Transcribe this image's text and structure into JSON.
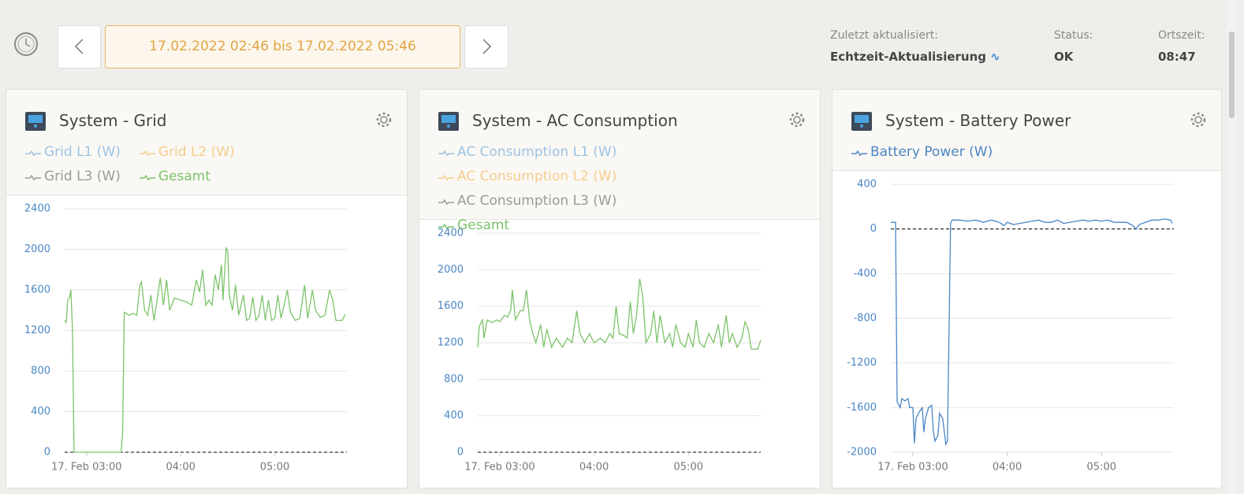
{
  "header": {
    "date_range": "17.02.2022 02:46 bis 17.02.2022 05:46",
    "updated_label": "Zuletzt aktualisiert:",
    "updated_value": "Echtzeit-Aktualisierung",
    "status_label": "Status:",
    "status_value": "OK",
    "time_label": "Ortszeit:",
    "time_value": "08:47"
  },
  "chart_data": [
    {
      "type": "line",
      "title": "System - Grid",
      "series": [
        {
          "name": "Grid L1 (W)",
          "color": "#9cc3e4"
        },
        {
          "name": "Grid L2 (W)",
          "color": "#f5cd8f"
        },
        {
          "name": "Grid L3 (W)",
          "color": "#9a9a9a"
        },
        {
          "name": "Gesamt",
          "color": "#7cc36a",
          "x": [
            "02:46",
            "02:47",
            "02:48",
            "02:49",
            "02:50",
            "02:51",
            "02:52",
            "03:22",
            "03:23",
            "03:24",
            "03:27",
            "03:30",
            "03:32",
            "03:34",
            "03:35",
            "03:37",
            "03:39",
            "03:41",
            "03:43",
            "03:45",
            "03:47",
            "03:49",
            "03:51",
            "03:53",
            "03:56",
            "04:00",
            "04:04",
            "04:07",
            "04:10",
            "04:12",
            "04:14",
            "04:16",
            "04:18",
            "04:20",
            "04:22",
            "04:24",
            "04:26",
            "04:27",
            "04:29",
            "04:30",
            "04:31",
            "04:33",
            "04:35",
            "04:37",
            "04:40",
            "04:42",
            "04:44",
            "04:46",
            "04:48",
            "04:50",
            "04:52",
            "04:54",
            "04:56",
            "04:58",
            "05:00",
            "05:02",
            "05:04",
            "05:06",
            "05:08",
            "05:10",
            "05:13",
            "05:16",
            "05:19",
            "05:21",
            "05:24",
            "05:26",
            "05:29",
            "05:32",
            "05:35",
            "05:37",
            "05:39",
            "05:43",
            "05:45"
          ],
          "values": [
            1300,
            1280,
            1500,
            1520,
            1600,
            1200,
            0,
            0,
            200,
            1380,
            1350,
            1370,
            1350,
            1650,
            1680,
            1400,
            1350,
            1550,
            1300,
            1500,
            1720,
            1450,
            1700,
            1400,
            1520,
            1500,
            1480,
            1450,
            1700,
            1580,
            1800,
            1450,
            1500,
            1450,
            1750,
            1600,
            1850,
            1500,
            2020,
            1980,
            1550,
            1400,
            1650,
            1350,
            1550,
            1300,
            1320,
            1530,
            1300,
            1350,
            1550,
            1300,
            1500,
            1300,
            1320,
            1550,
            1320,
            1450,
            1600,
            1380,
            1300,
            1320,
            1650,
            1320,
            1600,
            1400,
            1330,
            1350,
            1600,
            1500,
            1300,
            1300,
            1360
          ]
        }
      ],
      "xlim": [
        "02:46",
        "05:46"
      ],
      "xticks": [
        {
          "value": "03:00",
          "label": "17. Feb 03:00"
        },
        "04:00",
        "05:00"
      ],
      "ylim": [
        0,
        2400
      ],
      "yticks": [
        0,
        400,
        800,
        1200,
        1600,
        2000,
        2400
      ],
      "grid": true
    },
    {
      "type": "line",
      "title": "System - AC Consumption",
      "series": [
        {
          "name": "AC Consumption L1 (W)",
          "color": "#9cc3e4"
        },
        {
          "name": "AC Consumption L2 (W)",
          "color": "#f5cd8f"
        },
        {
          "name": "AC Consumption L3 (W)",
          "color": "#9a9a9a"
        },
        {
          "name": "Gesamt",
          "color": "#7cc36a",
          "x": [
            "02:46",
            "02:47",
            "02:49",
            "02:50",
            "02:52",
            "02:55",
            "02:58",
            "03:00",
            "03:03",
            "03:05",
            "03:07",
            "03:08",
            "03:10",
            "03:13",
            "03:15",
            "03:17",
            "03:19",
            "03:21",
            "03:23",
            "03:26",
            "03:28",
            "03:30",
            "03:33",
            "03:36",
            "03:40",
            "03:43",
            "03:46",
            "03:49",
            "03:51",
            "03:54",
            "03:57",
            "04:00",
            "04:04",
            "04:07",
            "04:10",
            "04:12",
            "04:14",
            "04:16",
            "04:19",
            "04:21",
            "04:23",
            "04:25",
            "04:27",
            "04:29",
            "04:31",
            "04:33",
            "04:36",
            "04:38",
            "04:40",
            "04:42",
            "04:45",
            "04:48",
            "04:50",
            "04:52",
            "04:55",
            "04:58",
            "05:00",
            "05:03",
            "05:05",
            "05:07",
            "05:10",
            "05:13",
            "05:16",
            "05:19",
            "05:21",
            "05:24",
            "05:26",
            "05:28",
            "05:31",
            "05:34",
            "05:36",
            "05:38",
            "05:40",
            "05:44",
            "05:46"
          ],
          "values": [
            1150,
            1380,
            1450,
            1250,
            1450,
            1420,
            1450,
            1430,
            1500,
            1480,
            1560,
            1780,
            1450,
            1550,
            1550,
            1780,
            1450,
            1300,
            1200,
            1400,
            1150,
            1350,
            1150,
            1250,
            1150,
            1250,
            1200,
            1550,
            1300,
            1200,
            1300,
            1200,
            1250,
            1200,
            1300,
            1250,
            1600,
            1300,
            1280,
            1250,
            1650,
            1300,
            1500,
            1900,
            1700,
            1200,
            1300,
            1550,
            1200,
            1500,
            1200,
            1300,
            1150,
            1400,
            1200,
            1150,
            1300,
            1150,
            1450,
            1200,
            1150,
            1300,
            1200,
            1400,
            1150,
            1500,
            1200,
            1300,
            1150,
            1250,
            1430,
            1350,
            1130,
            1130,
            1230
          ]
        }
      ],
      "xlim": [
        "02:46",
        "05:46"
      ],
      "xticks": [
        {
          "value": "03:00",
          "label": "17. Feb 03:00"
        },
        "04:00",
        "05:00"
      ],
      "ylim": [
        0,
        2400
      ],
      "yticks": [
        0,
        400,
        800,
        1200,
        1600,
        2000,
        2400
      ],
      "grid": true
    },
    {
      "type": "line",
      "title": "System - Battery Power",
      "series": [
        {
          "name": "Battery Power (W)",
          "color": "#4a86c5",
          "x": [
            "02:46",
            "02:49",
            "02:50",
            "02:52",
            "02:53",
            "02:55",
            "02:57",
            "02:58",
            "03:00",
            "03:01",
            "03:02",
            "03:04",
            "03:06",
            "03:07",
            "03:08",
            "03:10",
            "03:12",
            "03:13",
            "03:14",
            "03:16",
            "03:17",
            "03:19",
            "03:21",
            "03:22",
            "03:24",
            "03:25",
            "03:30",
            "03:35",
            "03:40",
            "03:45",
            "03:50",
            "03:55",
            "03:58",
            "04:00",
            "04:04",
            "04:08",
            "04:12",
            "04:16",
            "04:20",
            "04:24",
            "04:28",
            "04:32",
            "04:36",
            "04:40",
            "04:44",
            "04:48",
            "04:52",
            "04:56",
            "05:00",
            "05:04",
            "05:08",
            "05:12",
            "05:16",
            "05:20",
            "05:22",
            "05:24",
            "05:28",
            "05:32",
            "05:36",
            "05:40",
            "05:44",
            "05:45"
          ],
          "values": [
            60,
            60,
            -1550,
            -1600,
            -1520,
            -1540,
            -1520,
            -1600,
            -1600,
            -1920,
            -1700,
            -1640,
            -1600,
            -1820,
            -1700,
            -1600,
            -1580,
            -1800,
            -1900,
            -1850,
            -1650,
            -1700,
            -1930,
            -1900,
            50,
            80,
            80,
            70,
            80,
            60,
            80,
            60,
            30,
            60,
            40,
            50,
            60,
            70,
            80,
            60,
            60,
            80,
            50,
            60,
            70,
            80,
            70,
            80,
            70,
            80,
            60,
            60,
            60,
            30,
            0,
            40,
            60,
            80,
            80,
            90,
            80,
            50
          ]
        }
      ],
      "xlim": [
        "02:46",
        "05:46"
      ],
      "xticks": [
        {
          "value": "03:00",
          "label": "17. Feb 03:00"
        },
        "04:00",
        "05:00"
      ],
      "ylim": [
        -2000,
        400
      ],
      "yticks": [
        -2000,
        -1600,
        -1200,
        -800,
        -400,
        0,
        400
      ],
      "grid": true
    }
  ]
}
